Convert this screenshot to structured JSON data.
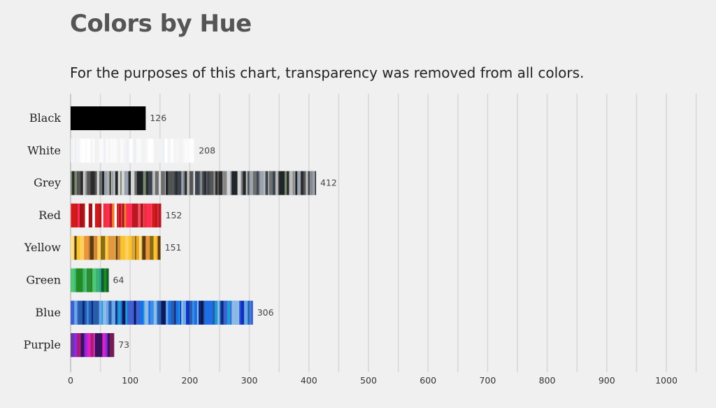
{
  "chart_data": {
    "type": "bar",
    "orientation": "horizontal",
    "title": "Colors by Hue",
    "subtitle": "For the purposes of this chart, transparency was removed from all colors.",
    "categories": [
      "Black",
      "White",
      "Grey",
      "Red",
      "Yellow",
      "Green",
      "Blue",
      "Purple"
    ],
    "values": [
      126,
      208,
      412,
      152,
      151,
      64,
      306,
      73
    ],
    "xlim": [
      0,
      1050
    ],
    "xticks": [
      0,
      100,
      200,
      300,
      400,
      500,
      600,
      700,
      800,
      900,
      1000
    ],
    "grid": true,
    "data_labels": true,
    "palettes": {
      "Black": [
        "#000000"
      ],
      "White": [
        "#ffffff",
        "#fafafa",
        "#f5f5f7",
        "#eef0f5",
        "#fdfdfd",
        "#f2f2f2"
      ],
      "Grey": [
        "#2b2b2b",
        "#555555",
        "#8a8a8a",
        "#bbbbbb",
        "#d5d5d5",
        "#3a4450",
        "#9aa3b0",
        "#6e6e6e",
        "#7a8a70",
        "#1f2528"
      ],
      "Red": [
        "#d21a1a",
        "#e8323c",
        "#b81822",
        "#f05060",
        "#f27a30",
        "#ff2d55",
        "#a01418",
        "#ffffff"
      ],
      "Yellow": [
        "#f7c530",
        "#f5a623",
        "#e89540",
        "#d4883a",
        "#fbe08a",
        "#8a6a10",
        "#5a3a10",
        "#ffd060",
        "#c9a050"
      ],
      "Green": [
        "#2e8b3a",
        "#3cb371",
        "#228b22",
        "#1e6e3e",
        "#5ec26a",
        "#2aa198",
        "#0b5e2c",
        "#50c878"
      ],
      "Blue": [
        "#1e6ee6",
        "#2a5caa",
        "#3a8ee8",
        "#1030c0",
        "#0a2a80",
        "#6aa8e8",
        "#1a9ed8",
        "#4060d0",
        "#0a1a5a",
        "#8fbbe8"
      ],
      "Purple": [
        "#5a1a8a",
        "#8a2be2",
        "#e020c0",
        "#3a1060",
        "#b01a7a",
        "#6a3aa0",
        "#ff40d0",
        "#7a1a50"
      ]
    }
  }
}
